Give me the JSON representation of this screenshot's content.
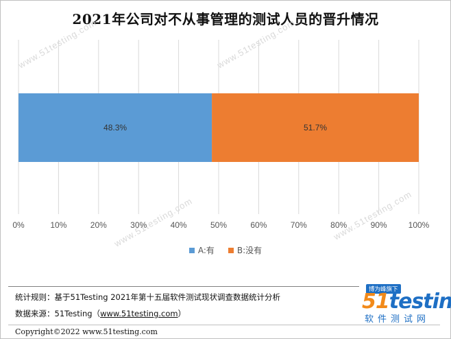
{
  "chart_data": {
    "type": "bar",
    "orientation": "horizontal-stacked-100",
    "title": "2021年公司对不从事管理的测试人员的晋升情况",
    "categories": [
      ""
    ],
    "series": [
      {
        "name": "A:有",
        "values": [
          48.3
        ],
        "label": "48.3%",
        "color": "#5b9bd5"
      },
      {
        "name": "B:没有",
        "values": [
          51.7
        ],
        "label": "51.7%",
        "color": "#ed7d31"
      }
    ],
    "xlim": [
      0,
      100
    ],
    "x_ticks": [
      "0%",
      "10%",
      "20%",
      "30%",
      "40%",
      "50%",
      "60%",
      "70%",
      "80%",
      "90%",
      "100%"
    ],
    "grid": true,
    "legend": "bottom"
  },
  "watermark": "www.51testing.com",
  "footer": {
    "rule_text": "统计规则：基于51Testing 2021年第十五届软件测试现状调查数据统计分析",
    "source_prefix": "数据来源：51Testing（",
    "source_link": "www.51testing.com",
    "source_suffix": "）",
    "copyright": "Copyright©2022 www.51testing.com"
  },
  "logo": {
    "badge": "博为峰旗下",
    "word_51": "51",
    "word_testing": "testing",
    "subtitle": "软件测试网"
  }
}
